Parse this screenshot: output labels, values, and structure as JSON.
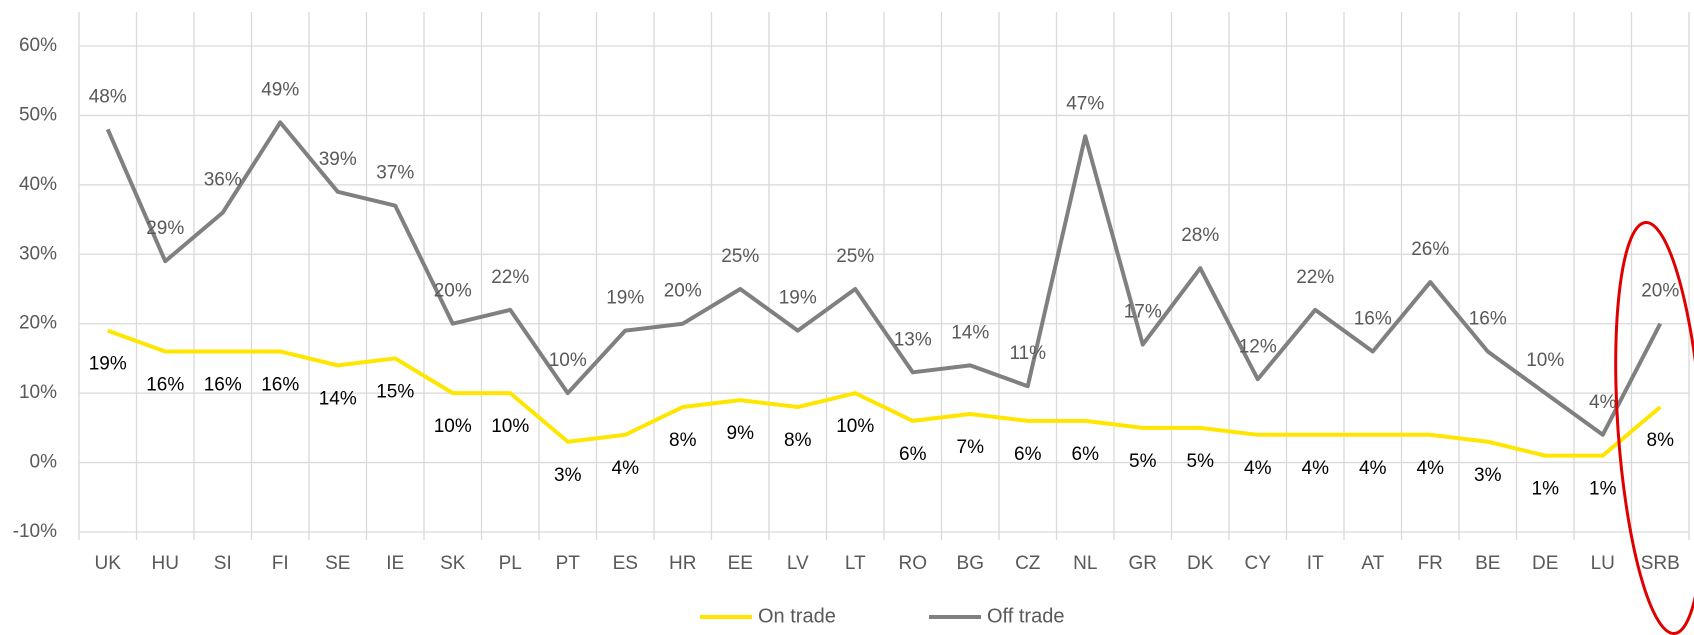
{
  "chart_data": {
    "type": "line",
    "categories": [
      "UK",
      "HU",
      "SI",
      "FI",
      "SE",
      "IE",
      "SK",
      "PL",
      "PT",
      "ES",
      "HR",
      "EE",
      "LV",
      "LT",
      "RO",
      "BG",
      "CZ",
      "NL",
      "GR",
      "DK",
      "CY",
      "IT",
      "AT",
      "FR",
      "BE",
      "DE",
      "LU",
      "SRB"
    ],
    "series": [
      {
        "name": "On trade",
        "color": "#ffe600",
        "values": [
          19,
          16,
          16,
          16,
          14,
          15,
          10,
          10,
          3,
          4,
          8,
          9,
          8,
          10,
          6,
          7,
          6,
          6,
          5,
          5,
          4,
          4,
          4,
          4,
          3,
          1,
          1,
          8
        ],
        "value_labels": [
          "19%",
          "16%",
          "16%",
          "16%",
          "14%",
          "15%",
          "10%",
          "10%",
          "3%",
          "4%",
          "8%",
          "9%",
          "8%",
          "10%",
          "6%",
          "7%",
          "6%",
          "6%",
          "5%",
          "5%",
          "4%",
          "4%",
          "4%",
          "4%",
          "3%",
          "1%",
          "1%",
          "8%"
        ]
      },
      {
        "name": "Off trade",
        "color": "#808080",
        "values": [
          48,
          29,
          36,
          49,
          39,
          37,
          20,
          22,
          10,
          19,
          20,
          25,
          19,
          25,
          13,
          14,
          11,
          47,
          17,
          28,
          12,
          22,
          16,
          26,
          16,
          10,
          4,
          20
        ],
        "value_labels": [
          "48%",
          "29%",
          "36%",
          "49%",
          "39%",
          "37%",
          "20%",
          "22%",
          "10%",
          "19%",
          "20%",
          "25%",
          "19%",
          "25%",
          "13%",
          "14%",
          "11%",
          "47%",
          "17%",
          "28%",
          "12%",
          "22%",
          "16%",
          "26%",
          "16%",
          "10%",
          "4%",
          "20%"
        ]
      }
    ],
    "ylim": [
      -10,
      60
    ],
    "yticks": [
      {
        "value": -10,
        "label": "-10%"
      },
      {
        "value": 0,
        "label": "0%"
      },
      {
        "value": 10,
        "label": "10%"
      },
      {
        "value": 20,
        "label": "20%"
      },
      {
        "value": 30,
        "label": "30%"
      },
      {
        "value": 40,
        "label": "40%"
      },
      {
        "value": 50,
        "label": "50%"
      },
      {
        "value": 60,
        "label": "60%"
      }
    ],
    "grid": true,
    "legend": "bottom"
  }
}
